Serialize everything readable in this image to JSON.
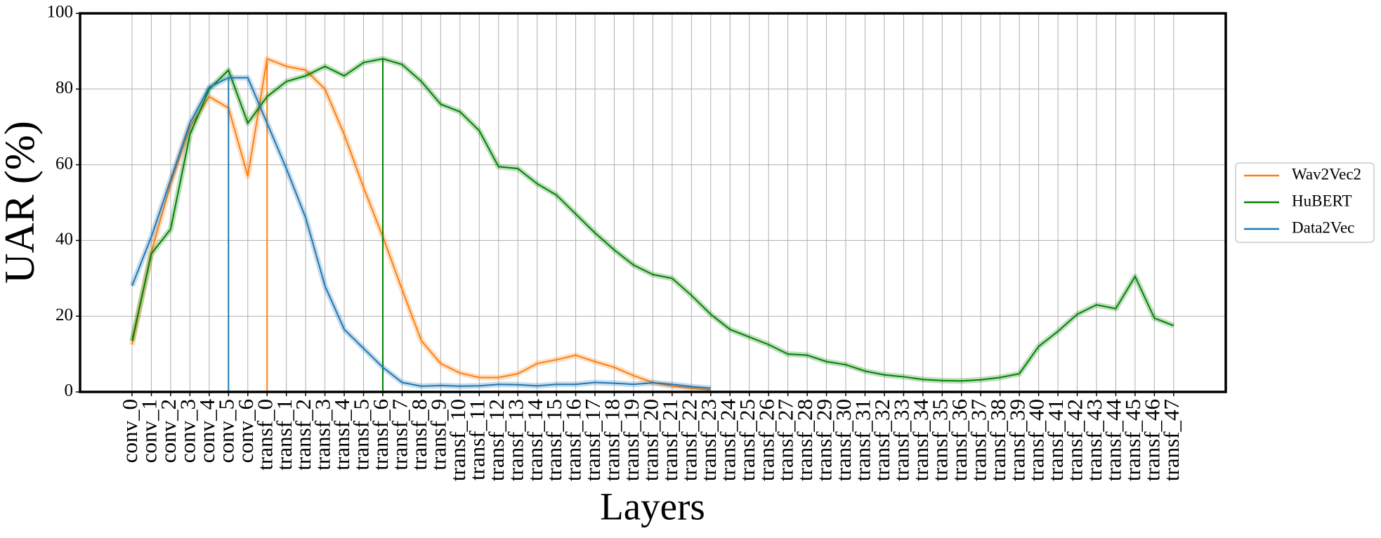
{
  "chart_data": {
    "type": "line",
    "xlabel": "Layers",
    "ylabel": "UAR (%)",
    "categories": [
      "conv_0",
      "conv_1",
      "conv_2",
      "conv_3",
      "conv_4",
      "conv_5",
      "conv_6",
      "transf_0",
      "transf_1",
      "transf_2",
      "transf_3",
      "transf_4",
      "transf_5",
      "transf_6",
      "transf_7",
      "transf_8",
      "transf_9",
      "transf_10",
      "transf_11",
      "transf_12",
      "transf_13",
      "transf_14",
      "transf_15",
      "transf_16",
      "transf_17",
      "transf_18",
      "transf_19",
      "transf_20",
      "transf_21",
      "transf_22",
      "transf_23",
      "transf_24",
      "transf_25",
      "transf_26",
      "transf_27",
      "transf_28",
      "transf_29",
      "transf_30",
      "transf_31",
      "transf_32",
      "transf_33",
      "transf_34",
      "transf_35",
      "transf_36",
      "transf_37",
      "transf_38",
      "transf_39",
      "transf_40",
      "transf_41",
      "transf_42",
      "transf_43",
      "transf_44",
      "transf_45",
      "transf_46",
      "transf_47"
    ],
    "series": [
      {
        "name": "Wav2Vec2",
        "color": "#ff7f0e",
        "values": [
          12.5,
          37,
          55,
          70,
          78,
          75,
          57,
          88,
          86,
          85,
          80,
          68,
          54,
          41,
          27,
          13.5,
          7.5,
          5,
          3.8,
          3.8,
          4.8,
          7.5,
          8.5,
          9.7,
          8,
          6.5,
          4.3,
          2.5,
          1.5,
          1,
          0.5,
          null,
          null,
          null,
          null,
          null,
          null,
          null,
          null,
          null,
          null,
          null,
          null,
          null,
          null,
          null,
          null,
          null,
          null,
          null,
          null,
          null,
          null,
          null,
          null
        ]
      },
      {
        "name": "HuBERT",
        "color": "#008000",
        "values": [
          13.5,
          36.5,
          43,
          68,
          80,
          85,
          71,
          78,
          82,
          83.5,
          86,
          83.5,
          87,
          88,
          86.5,
          82,
          76,
          74,
          69,
          59.5,
          59,
          55,
          52,
          47,
          42,
          37.5,
          33.5,
          31,
          30,
          25.5,
          20.5,
          16.5,
          14.5,
          12.5,
          10,
          9.7,
          8,
          7.2,
          5.5,
          4.5,
          4,
          3.3,
          3,
          2.9,
          3.2,
          3.8,
          4.8,
          12,
          16,
          20.5,
          23,
          22,
          30.5,
          19.5,
          17.5
        ]
      },
      {
        "name": "Data2Vec",
        "color": "#1f77b4",
        "values": [
          28,
          41,
          56,
          71,
          80.5,
          83,
          83,
          71,
          59,
          46,
          28,
          16.5,
          11.5,
          6.5,
          2.5,
          1.5,
          1.7,
          1.5,
          1.6,
          2,
          1.9,
          1.6,
          2,
          2,
          2.5,
          2.3,
          2,
          2.4,
          2,
          1.4,
          1,
          null,
          null,
          null,
          null,
          null,
          null,
          null,
          null,
          null,
          null,
          null,
          null,
          null,
          null,
          null,
          null,
          null,
          null,
          null,
          null,
          null,
          null,
          null,
          null
        ]
      }
    ],
    "ylim": [
      0,
      100
    ],
    "yticks": [
      0,
      20,
      40,
      60,
      80,
      100
    ],
    "grid": true,
    "legend": "right"
  }
}
